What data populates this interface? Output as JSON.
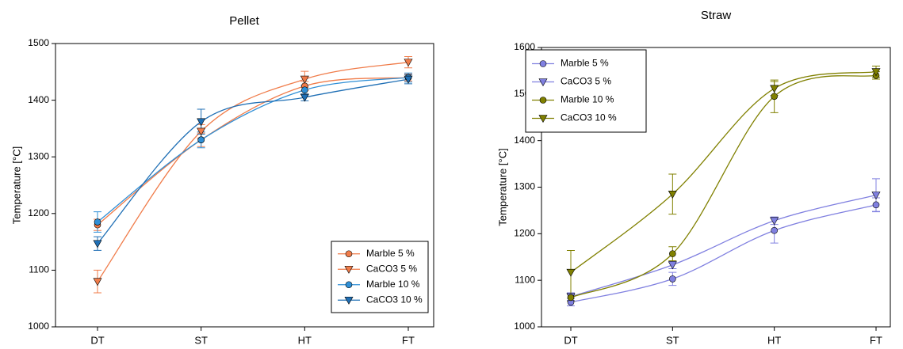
{
  "chart_data": [
    {
      "type": "line",
      "title": "Pellet",
      "y_label": "Temperature [°C]",
      "categories": [
        "DT",
        "ST",
        "HT",
        "FT"
      ],
      "ylim": [
        1000,
        1500
      ],
      "yticks": [
        1000,
        1100,
        1200,
        1300,
        1400,
        1500
      ],
      "grid": false,
      "legend": "lower right",
      "series": [
        {
          "name": "Marble 5 %",
          "color": "#f07c4a",
          "marker": "circle",
          "values": [
            1180,
            1330,
            1425,
            1440
          ],
          "errors": [
            10,
            12,
            8,
            6
          ]
        },
        {
          "name": "CaCO3 5 %",
          "color": "#f07c4a",
          "marker": "triangle",
          "values": [
            1080,
            1345,
            1437,
            1467
          ],
          "errors": [
            20,
            12,
            14,
            10
          ]
        },
        {
          "name": "Marble 10 %",
          "color": "#2f8fd6",
          "marker": "circle",
          "values": [
            1185,
            1330,
            1418,
            1440
          ],
          "errors": [
            18,
            14,
            8,
            8
          ]
        },
        {
          "name": "CaCO3 10 %",
          "color": "#1f6fb5",
          "marker": "triangle",
          "values": [
            1147,
            1362,
            1405,
            1437
          ],
          "errors": [
            12,
            22,
            6,
            8
          ]
        }
      ]
    },
    {
      "type": "line",
      "title": "Straw",
      "y_label": "Temperature [°C]",
      "categories": [
        "DT",
        "ST",
        "HT",
        "FT"
      ],
      "ylim": [
        1000,
        1600
      ],
      "yticks": [
        1000,
        1100,
        1200,
        1300,
        1400,
        1500,
        1600
      ],
      "grid": false,
      "legend": "upper left",
      "series": [
        {
          "name": "Marble 5 %",
          "color": "#8080e0",
          "marker": "circle",
          "values": [
            1053,
            1103,
            1207,
            1262
          ],
          "errors": [
            8,
            14,
            27,
            15
          ]
        },
        {
          "name": "CaCO3 5 %",
          "color": "#8080e0",
          "marker": "triangle",
          "values": [
            1065,
            1133,
            1228,
            1283
          ],
          "errors": [
            8,
            8,
            8,
            35
          ]
        },
        {
          "name": "Marble 10 %",
          "color": "#808000",
          "marker": "circle",
          "values": [
            1063,
            1157,
            1495,
            1540
          ],
          "errors": [
            8,
            15,
            35,
            8
          ]
        },
        {
          "name": "CaCO3 10 %",
          "color": "#808000",
          "marker": "triangle",
          "values": [
            1117,
            1285,
            1512,
            1548
          ],
          "errors": [
            47,
            43,
            15,
            12
          ]
        }
      ]
    }
  ]
}
